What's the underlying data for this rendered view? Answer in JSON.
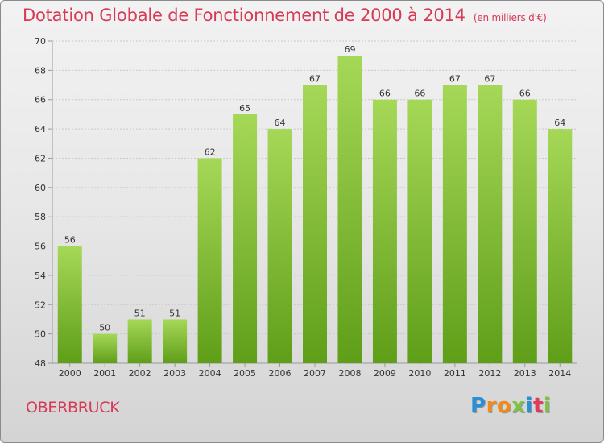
{
  "title": "Dotation Globale de Fonctionnement de 2000 à 2014",
  "unit": "(en milliers d'€)",
  "commune": "OBERBRUCK",
  "logo": {
    "letters": [
      "P",
      "r",
      "o",
      "x",
      "i",
      "t",
      "i"
    ],
    "colors": [
      "#2a8fd6",
      "#f08a1a",
      "#f08a1a",
      "#7dc242",
      "#2a8fd6",
      "#e23c5a",
      "#7dc242"
    ]
  },
  "colors": {
    "bar_top": "#a6d858",
    "bar_bottom": "#5f9e18",
    "accent": "#d63a55"
  },
  "chart_data": {
    "type": "bar",
    "title": "Dotation Globale de Fonctionnement de 2000 à 2014",
    "xlabel": "",
    "ylabel": "",
    "categories": [
      "2000",
      "2001",
      "2002",
      "2003",
      "2004",
      "2005",
      "2006",
      "2007",
      "2008",
      "2009",
      "2010",
      "2011",
      "2012",
      "2013",
      "2014"
    ],
    "values": [
      56,
      50,
      51,
      51,
      62,
      65,
      64,
      67,
      69,
      66,
      66,
      67,
      67,
      66,
      64
    ],
    "ylim": [
      48,
      70
    ],
    "yticks": [
      48,
      50,
      52,
      54,
      56,
      58,
      60,
      62,
      64,
      66,
      68,
      70
    ],
    "grid": true
  }
}
